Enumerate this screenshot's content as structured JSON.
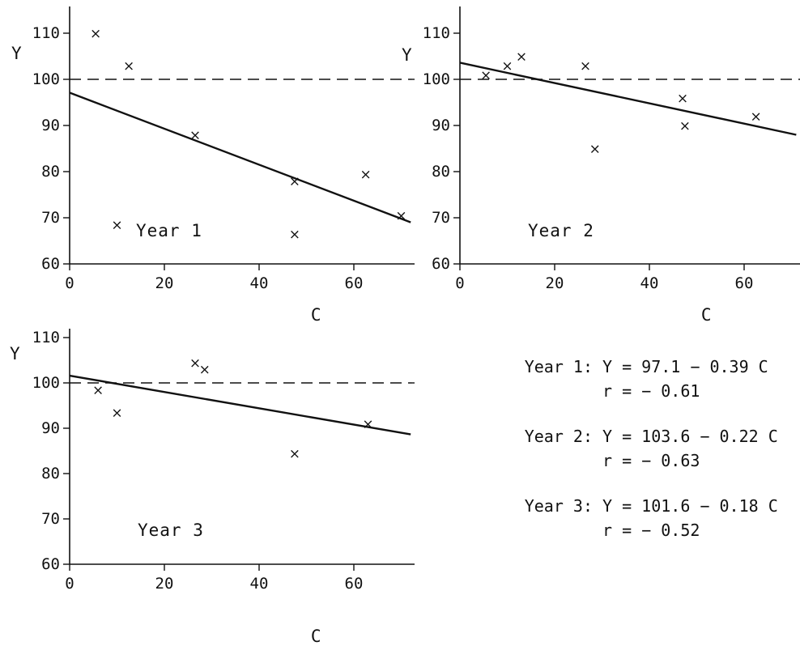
{
  "chart_data": [
    {
      "type": "scatter",
      "panel_label": "Year 1",
      "xlabel": "C",
      "ylabel": "Y",
      "xlim": [
        0,
        75
      ],
      "ylim": [
        60,
        115
      ],
      "x_ticks": [
        "0",
        "20",
        "40",
        "60"
      ],
      "y_ticks": [
        "60",
        "70",
        "80",
        "90",
        "100",
        "110"
      ],
      "reference_line": 100,
      "points": [
        {
          "x": 5.5,
          "y": 110
        },
        {
          "x": 12.5,
          "y": 103
        },
        {
          "x": 10,
          "y": 68.5
        },
        {
          "x": 26.5,
          "y": 88
        },
        {
          "x": 47.5,
          "y": 78
        },
        {
          "x": 47.5,
          "y": 66.5
        },
        {
          "x": 62.5,
          "y": 79.5
        },
        {
          "x": 70,
          "y": 70.5
        }
      ],
      "fit": {
        "intercept": 97.1,
        "slope": -0.39,
        "x_end": 72
      }
    },
    {
      "type": "scatter",
      "panel_label": "Year 2",
      "xlabel": "C",
      "ylabel": "Y",
      "xlim": [
        0,
        75
      ],
      "ylim": [
        60,
        115
      ],
      "x_ticks": [
        "0",
        "20",
        "40",
        "60"
      ],
      "y_ticks": [
        "60",
        "70",
        "80",
        "90",
        "100",
        "110"
      ],
      "reference_line": 100,
      "points": [
        {
          "x": 5.5,
          "y": 101
        },
        {
          "x": 10,
          "y": 103
        },
        {
          "x": 13,
          "y": 105
        },
        {
          "x": 26.5,
          "y": 103
        },
        {
          "x": 28.5,
          "y": 85
        },
        {
          "x": 47,
          "y": 96
        },
        {
          "x": 47.5,
          "y": 90
        },
        {
          "x": 62.5,
          "y": 92
        }
      ],
      "fit": {
        "intercept": 103.6,
        "slope": -0.22,
        "x_end": 71
      }
    },
    {
      "type": "scatter",
      "panel_label": "Year 3",
      "xlabel": "C",
      "ylabel": "Y",
      "xlim": [
        0,
        75
      ],
      "ylim": [
        60,
        115
      ],
      "x_ticks": [
        "0",
        "20",
        "40",
        "60"
      ],
      "y_ticks": [
        "60",
        "70",
        "80",
        "90",
        "100",
        "110"
      ],
      "reference_line": 100,
      "points": [
        {
          "x": 6,
          "y": 98.5
        },
        {
          "x": 10,
          "y": 93.5
        },
        {
          "x": 26.5,
          "y": 104.5
        },
        {
          "x": 28.5,
          "y": 103
        },
        {
          "x": 47.5,
          "y": 84.5
        },
        {
          "x": 63,
          "y": 91
        }
      ],
      "fit": {
        "intercept": 101.6,
        "slope": -0.18,
        "x_end": 72
      }
    }
  ],
  "equations": [
    {
      "label": "Year 1:",
      "equation": "Y = 97.1 − 0.39 C",
      "r": "r = − 0.61"
    },
    {
      "label": "Year 2:",
      "equation": "Y = 103.6 − 0.22 C",
      "r": "r = − 0.63"
    },
    {
      "label": "Year 3:",
      "equation": "Y = 101.6 − 0.18 C",
      "r": "r = − 0.52"
    }
  ]
}
